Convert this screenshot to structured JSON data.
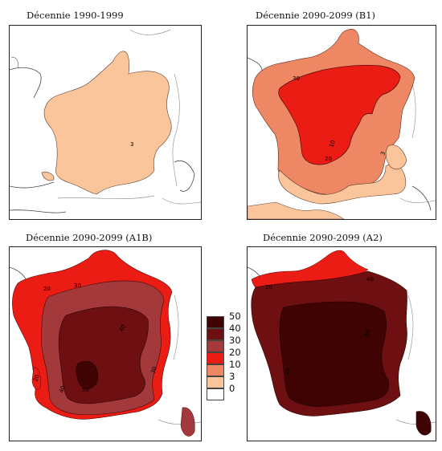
{
  "panels": [
    {
      "title": "Décennie 1990-1999",
      "labels": [
        "3"
      ]
    },
    {
      "title": "Décennie 2090-2099 (B1)",
      "labels": [
        "30",
        "20",
        "10",
        "3"
      ]
    },
    {
      "title": "Décennie 2090-2099 (A1B)",
      "labels": [
        "20",
        "30",
        "40",
        "40",
        "50",
        "20",
        "30"
      ]
    },
    {
      "title": "Décennie 2090-2099 (A2)",
      "labels": [
        "20",
        "40",
        "50",
        "50"
      ]
    }
  ],
  "legend": {
    "levels": [
      "50",
      "40",
      "30",
      "20",
      "10",
      "3",
      "0"
    ],
    "colors": {
      "c0_3": "#ffffff",
      "c3_10": "#fbc59c",
      "c10_20": "#ee8864",
      "c20_30": "#ea1c14",
      "c30_40": "#a4393c",
      "c40_50": "#6e1012",
      "c50p": "#3f0304"
    }
  }
}
